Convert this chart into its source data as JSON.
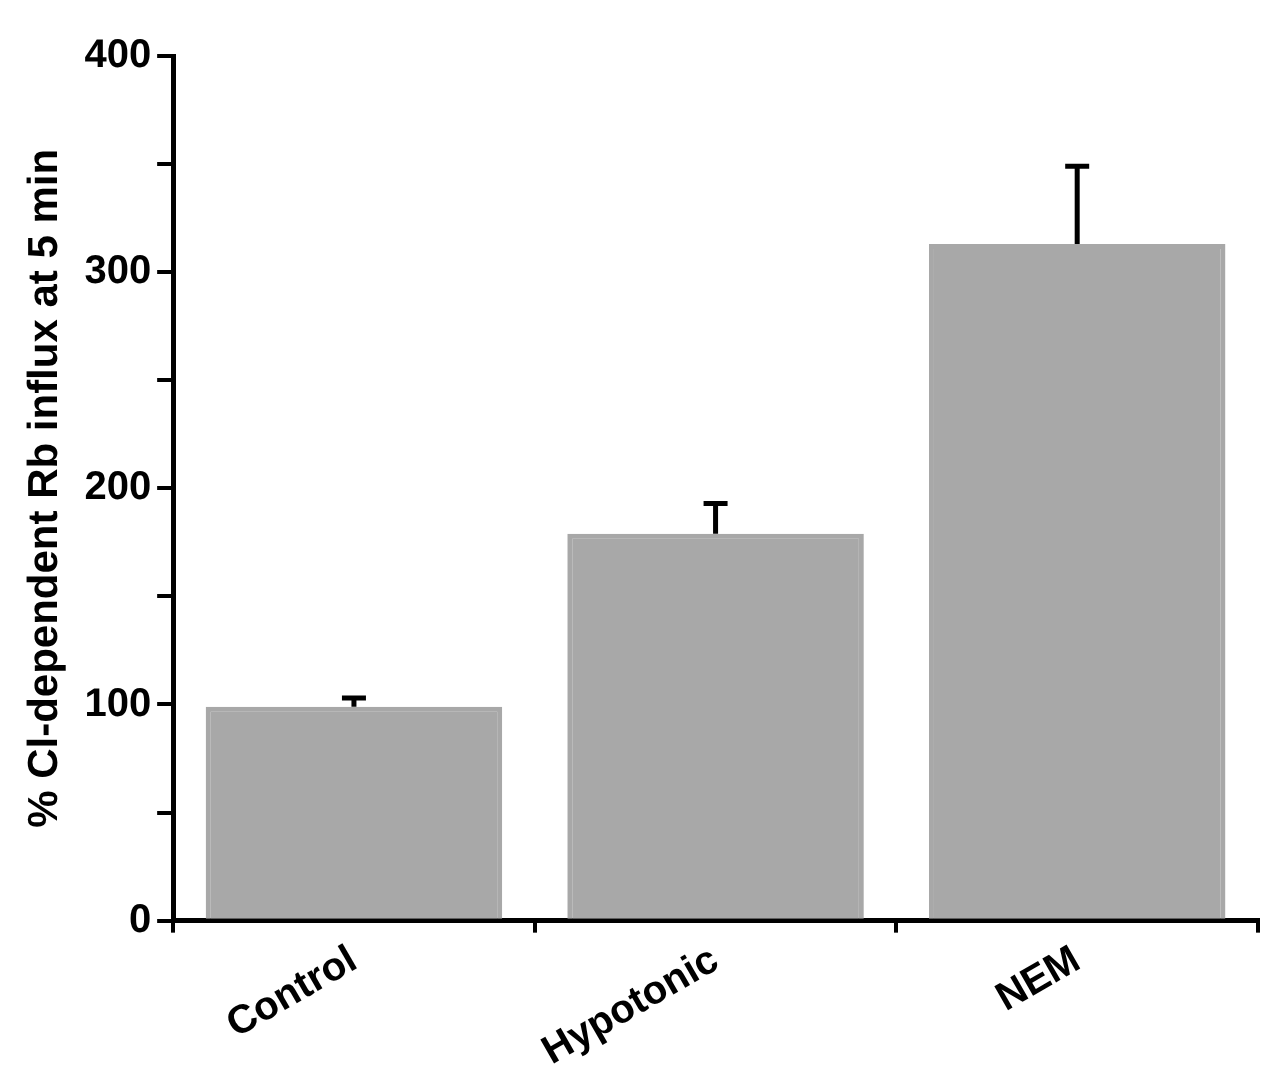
{
  "chart_data": {
    "type": "bar",
    "ylabel": "% Cl-dependent Rb influx at 5 min",
    "categories": [
      "Control",
      "Hypotonic",
      "NEM"
    ],
    "values": [
      99,
      179,
      313
    ],
    "errors": [
      [
        99,
        103
      ],
      [
        179,
        193
      ],
      [
        313,
        349
      ]
    ],
    "color": "#a8a8a8",
    "ylim": [
      0,
      400
    ],
    "yticks": [
      0,
      {
        "value": 50,
        "label": null
      },
      100,
      {
        "value": 150,
        "label": null
      },
      200,
      {
        "value": 250,
        "label": null
      },
      300,
      {
        "value": 350,
        "label": null
      },
      400
    ],
    "grid": false,
    "legend": false
  }
}
